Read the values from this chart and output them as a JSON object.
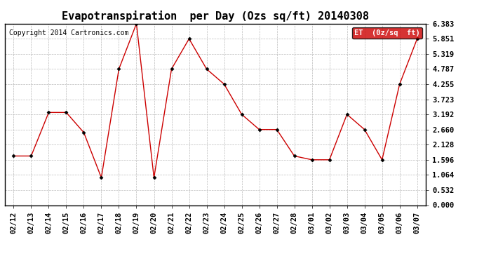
{
  "title": "Evapotranspiration  per Day (Ozs sq/ft) 20140308",
  "copyright": "Copyright 2014 Cartronics.com",
  "legend_label": "ET  (0z/sq  ft)",
  "legend_bg": "#cc0000",
  "legend_text_color": "#ffffff",
  "x_labels": [
    "02/12",
    "02/13",
    "02/14",
    "02/15",
    "02/16",
    "02/17",
    "02/18",
    "02/19",
    "02/20",
    "02/21",
    "02/22",
    "02/23",
    "02/24",
    "02/25",
    "02/26",
    "02/27",
    "02/28",
    "03/01",
    "03/02",
    "03/03",
    "03/04",
    "03/05",
    "03/06",
    "03/07"
  ],
  "y_values": [
    1.729,
    1.729,
    3.26,
    3.26,
    2.554,
    0.967,
    4.787,
    6.383,
    0.967,
    4.787,
    5.851,
    4.787,
    4.255,
    3.192,
    2.66,
    2.66,
    1.729,
    1.596,
    1.596,
    3.192,
    2.66,
    1.596,
    4.255,
    5.851
  ],
  "y_ticks": [
    0.0,
    0.532,
    1.064,
    1.596,
    2.128,
    2.66,
    3.192,
    3.723,
    4.255,
    4.787,
    5.319,
    5.851,
    6.383
  ],
  "line_color": "#cc0000",
  "marker_color": "#000000",
  "bg_color": "#ffffff",
  "grid_color": "#bbbbbb",
  "title_fontsize": 11,
  "copyright_fontsize": 7,
  "tick_fontsize": 7.5
}
